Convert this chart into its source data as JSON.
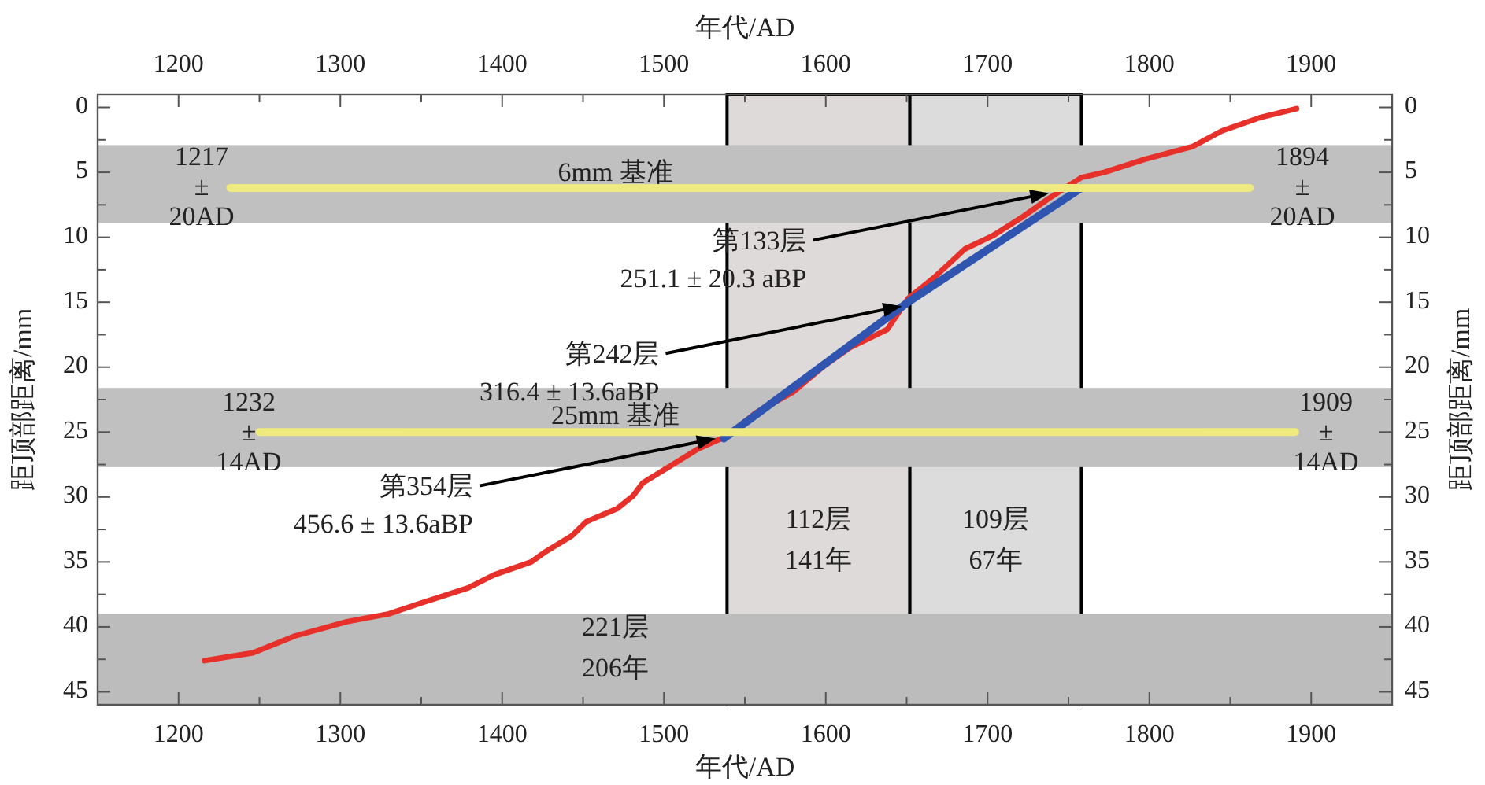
{
  "chart_data": {
    "type": "line",
    "xlabel": "年代/AD",
    "x2label": "年代/AD",
    "ylabel": "距顶部距离/mm",
    "y2label": "距顶部距离/mm",
    "xlim": [
      1150,
      1950
    ],
    "x2lim": [
      1150,
      1950
    ],
    "ylim": [
      46,
      -1
    ],
    "y2lim": [
      46,
      -1
    ],
    "xticks": [
      1200,
      {
        "value": 1250,
        "label": null
      },
      1300,
      {
        "value": 1350,
        "label": null
      },
      1400,
      {
        "value": 1450,
        "label": null
      },
      1500,
      {
        "value": 1550,
        "label": null
      },
      1600,
      {
        "value": 1650,
        "label": null
      },
      1700,
      {
        "value": 1750,
        "label": null
      },
      1800,
      {
        "value": 1850,
        "label": null
      },
      1900
    ],
    "x2ticks": [
      1200,
      {
        "value": 1250,
        "label": null
      },
      1300,
      {
        "value": 1350,
        "label": null
      },
      1400,
      {
        "value": 1450,
        "label": null
      },
      1500,
      {
        "value": 1550,
        "label": null
      },
      1600,
      {
        "value": 1650,
        "label": null
      },
      1700,
      {
        "value": 1750,
        "label": null
      },
      1800,
      {
        "value": 1850,
        "label": null
      },
      1900
    ],
    "yticks": [
      0,
      {
        "value": 2.5,
        "label": null
      },
      5,
      {
        "value": 7.5,
        "label": null
      },
      10,
      {
        "value": 12.5,
        "label": null
      },
      15,
      {
        "value": 17.5,
        "label": null
      },
      20,
      {
        "value": 22.5,
        "label": null
      },
      25,
      {
        "value": 27.5,
        "label": null
      },
      30,
      {
        "value": 32.5,
        "label": null
      },
      35,
      {
        "value": 37.5,
        "label": null
      },
      40,
      {
        "value": 42.5,
        "label": null
      },
      45
    ],
    "y2ticks": [
      0,
      {
        "value": 2.5,
        "label": null
      },
      5,
      {
        "value": 7.5,
        "label": null
      },
      10,
      {
        "value": 12.5,
        "label": null
      },
      15,
      {
        "value": 17.5,
        "label": null
      },
      20,
      {
        "value": 22.5,
        "label": null
      },
      25,
      {
        "value": 27.5,
        "label": null
      },
      30,
      {
        "value": 32.5,
        "label": null
      },
      35,
      {
        "value": 37.5,
        "label": null
      },
      40,
      {
        "value": 42.5,
        "label": null
      },
      45
    ],
    "bands": [
      {
        "axis": "x",
        "from": 1539,
        "to": 1652,
        "label": "112层\n141年",
        "color": "#dedad9"
      },
      {
        "axis": "x",
        "from": 1652,
        "to": 1758,
        "label": "109层\n67年",
        "color": "#dcdcdc"
      },
      {
        "axis": "y",
        "from": 39,
        "to": 46,
        "label": "221层\n206年",
        "color": "#bcbcbc"
      },
      {
        "axis": "y",
        "from": 2.9,
        "to": 8.9,
        "label": "6mm 基准",
        "color": "#c0c0c0"
      },
      {
        "axis": "y",
        "from": 21.6,
        "to": 27.7,
        "label": "25mm 基准",
        "color": "#c0c0c0"
      }
    ],
    "series": [
      {
        "color": "#e8302a",
        "x": [
          1216,
          1246,
          1272,
          1304,
          1330,
          1349,
          1379,
          1395,
          1418,
          1427,
          1443,
          1452,
          1471,
          1481,
          1487,
          1508,
          1521,
          1539,
          1557,
          1580,
          1599,
          1615,
          1638,
          1651,
          1667,
          1686,
          1703,
          1722,
          1738,
          1758,
          1772,
          1797,
          1827,
          1845,
          1868,
          1891
        ],
        "values": [
          42.6,
          42.0,
          40.7,
          39.6,
          39.0,
          38.2,
          37.0,
          36.0,
          35.0,
          34.2,
          33.0,
          31.9,
          30.9,
          29.9,
          28.9,
          27.3,
          26.3,
          25.3,
          23.5,
          21.9,
          19.9,
          18.5,
          17.1,
          14.7,
          13.1,
          10.9,
          9.9,
          8.4,
          7.0,
          5.4,
          5.0,
          4.0,
          3.0,
          1.8,
          0.8,
          0.1
        ]
      },
      {
        "color": "#2f55b0",
        "x": [
          1537,
          1652,
          1758
        ],
        "values": [
          25.5,
          14.9,
          6.2
        ]
      },
      {
        "color": "#eeea80",
        "x": [
          1232,
          1862
        ],
        "values": [
          6.2,
          6.2
        ]
      },
      {
        "color": "#eeea80",
        "x": [
          1250,
          1890
        ],
        "values": [
          25.0,
          25.0
        ]
      }
    ],
    "annotations": [
      "1217\n±\n20AD",
      "1894\n±\n20AD",
      "1232\n±\n14AD",
      "1909\n±\n14AD",
      "第133层\n251.1 ± 20.3 aBP",
      "第242层\n316.4 ± 13.6aBP",
      "第354层\n456.6 ± 13.6aBP"
    ]
  }
}
